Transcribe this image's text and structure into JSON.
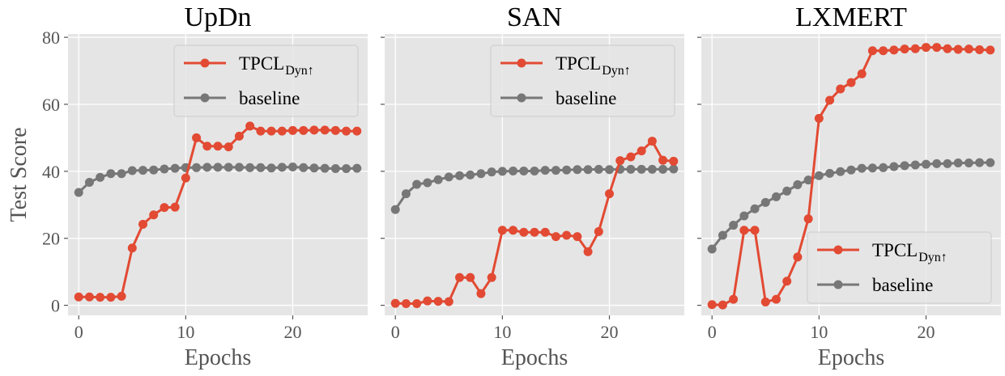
{
  "chart_data": [
    {
      "type": "line",
      "title": "UpDn",
      "xlabel": "Epochs",
      "ylabel": "Test Score",
      "xlim": [
        -1,
        27
      ],
      "ylim": [
        -3,
        81
      ],
      "xticks": [
        0,
        10,
        20
      ],
      "yticks": [
        0,
        20,
        40,
        60,
        80
      ],
      "grid": true,
      "legend_position": "top-right",
      "x": [
        0,
        1,
        2,
        3,
        4,
        5,
        6,
        7,
        8,
        9,
        10,
        11,
        12,
        13,
        14,
        15,
        16,
        17,
        18,
        19,
        20,
        21,
        22,
        23,
        24,
        25,
        26
      ],
      "series": [
        {
          "name": "TPCL",
          "name_subscript": "Dyn↑",
          "color": "#E24A33",
          "values": [
            2.5,
            2.5,
            2.4,
            2.4,
            2.7,
            17.1,
            24.2,
            27.0,
            29.2,
            29.3,
            38.0,
            50.0,
            47.5,
            47.5,
            47.3,
            50.5,
            53.5,
            52.0,
            52.0,
            52.0,
            52.2,
            52.2,
            52.3,
            52.3,
            52.2,
            52.0,
            52.0
          ]
        },
        {
          "name": "baseline",
          "color": "#777777",
          "values": [
            33.7,
            36.7,
            38.2,
            39.3,
            39.3,
            40.2,
            40.3,
            40.4,
            40.7,
            40.9,
            41.1,
            41.1,
            41.2,
            41.2,
            41.2,
            41.2,
            41.1,
            41.1,
            41.0,
            41.2,
            41.3,
            41.1,
            41.0,
            40.9,
            40.8,
            40.8,
            40.9
          ]
        }
      ]
    },
    {
      "type": "line",
      "title": "SAN",
      "xlabel": "Epochs",
      "ylabel": "",
      "xlim": [
        -1,
        27
      ],
      "ylim": [
        -3,
        81
      ],
      "xticks": [
        0,
        10,
        20
      ],
      "yticks": [
        0,
        20,
        40,
        60,
        80
      ],
      "grid": true,
      "legend_position": "top-right",
      "x": [
        0,
        1,
        2,
        3,
        4,
        5,
        6,
        7,
        8,
        9,
        10,
        11,
        12,
        13,
        14,
        15,
        16,
        17,
        18,
        19,
        20,
        21,
        22,
        23,
        24,
        25,
        26
      ],
      "series": [
        {
          "name": "TPCL",
          "name_subscript": "Dyn↑",
          "color": "#E24A33",
          "values": [
            0.6,
            0.5,
            0.5,
            1.3,
            1.2,
            1.1,
            8.3,
            8.3,
            3.5,
            8.3,
            22.4,
            22.4,
            21.8,
            21.8,
            21.8,
            20.5,
            20.9,
            20.5,
            16.0,
            22.0,
            33.3,
            43.2,
            44.3,
            46.1,
            49.0,
            43.3,
            43.0
          ]
        },
        {
          "name": "baseline",
          "color": "#777777",
          "values": [
            28.6,
            33.3,
            36.1,
            36.6,
            37.5,
            38.3,
            38.7,
            38.9,
            39.3,
            39.8,
            40.0,
            40.1,
            40.1,
            40.1,
            40.3,
            40.3,
            40.4,
            40.5,
            40.5,
            40.6,
            40.5,
            40.6,
            40.6,
            40.6,
            40.6,
            40.6,
            40.7
          ]
        }
      ]
    },
    {
      "type": "line",
      "title": "LXMERT",
      "xlabel": "Epochs",
      "ylabel": "",
      "xlim": [
        -1,
        27
      ],
      "ylim": [
        -3,
        81
      ],
      "xticks": [
        0,
        10,
        20
      ],
      "yticks": [
        0,
        20,
        40,
        60,
        80
      ],
      "grid": true,
      "legend_position": "bottom-right",
      "x": [
        0,
        1,
        2,
        3,
        4,
        5,
        6,
        7,
        8,
        9,
        10,
        11,
        12,
        13,
        14,
        15,
        16,
        17,
        18,
        19,
        20,
        21,
        22,
        23,
        24,
        25,
        26
      ],
      "series": [
        {
          "name": "TPCL",
          "name_subscript": "Dyn↑",
          "color": "#E24A33",
          "values": [
            0.2,
            0.1,
            1.8,
            22.4,
            22.4,
            1.0,
            1.8,
            7.2,
            14.4,
            25.8,
            55.8,
            61.2,
            64.6,
            66.5,
            69.1,
            76.0,
            76.0,
            76.2,
            76.5,
            76.6,
            77.0,
            77.0,
            76.6,
            76.4,
            76.5,
            76.3,
            76.2
          ]
        },
        {
          "name": "baseline",
          "color": "#777777",
          "values": [
            16.8,
            20.9,
            23.9,
            26.7,
            28.8,
            30.7,
            32.4,
            34.1,
            36.0,
            37.4,
            38.7,
            39.4,
            39.9,
            40.4,
            40.9,
            41.0,
            41.1,
            41.4,
            41.7,
            41.9,
            42.1,
            42.3,
            42.3,
            42.5,
            42.5,
            42.6,
            42.6
          ]
        }
      ]
    }
  ]
}
